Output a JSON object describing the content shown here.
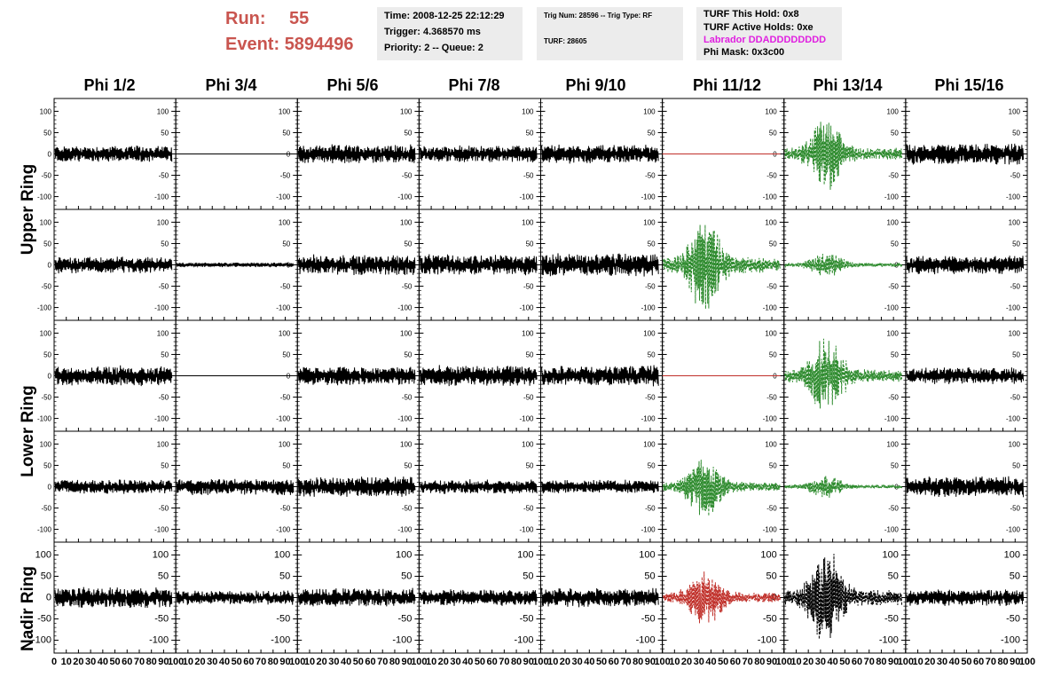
{
  "header": {
    "run_label": "Run:",
    "run_value": "55",
    "event_label": "Event:",
    "event_value": "5894496"
  },
  "info_time": {
    "time": "Time: 2008-12-25 22:12:29",
    "trigger": "Trigger: 4.368570 ms",
    "priority": "Priority: 2 -- Queue: 2"
  },
  "info_trig": {
    "trig": "Trig Num: 28596 -- Trig Type: RF",
    "turf": "TURF: 28605"
  },
  "info_turf": {
    "hold": "TURF This Hold: 0x8",
    "active": "TURF Active Holds: 0xe",
    "labrador": "Labrador DDADDDDDDDD",
    "phimask": "Phi Mask: 0x3c00",
    "labrador_color": "#e020e0"
  },
  "columns": [
    "Phi 1/2",
    "Phi 3/4",
    "Phi 5/6",
    "Phi 7/8",
    "Phi 9/10",
    "Phi 11/12",
    "Phi 13/14",
    "Phi 15/16"
  ],
  "rows": [
    "Upper Ring",
    "Lower Ring",
    "Nadir Ring"
  ],
  "colors": {
    "black": "#000000",
    "green": "#2e8b2e",
    "red": "#c0302a",
    "axis": "#000000"
  },
  "chart_data": {
    "type": "line",
    "xlim": [
      0,
      100
    ],
    "ylim_upper_lower": [
      -130,
      130
    ],
    "ylim_nadir": [
      -130,
      130
    ],
    "y_ticks_upper_lower": [
      "100",
      "50",
      "0",
      "-50",
      "-100"
    ],
    "y_ticks_nadir": [
      "100",
      "50",
      "0",
      "-50",
      "-100"
    ],
    "x_tick_labels": [
      "0",
      "10",
      "20",
      "30",
      "40",
      "50",
      "60",
      "70",
      "80",
      "90",
      "100"
    ],
    "panel_rows": 5,
    "panel_cols": 8,
    "panels": [
      [
        {
          "color": "black",
          "amp": 18,
          "style": "noise"
        },
        {
          "color": "black",
          "amp": 0,
          "style": "flat"
        },
        {
          "color": "black",
          "amp": 20,
          "style": "noise"
        },
        {
          "color": "black",
          "amp": 18,
          "style": "noise"
        },
        {
          "color": "black",
          "amp": 20,
          "style": "noise"
        },
        {
          "color": "red",
          "amp": 0,
          "style": "flat"
        },
        {
          "color": "green",
          "amp": 85,
          "style": "pulse"
        },
        {
          "color": "black",
          "amp": 22,
          "style": "noise"
        }
      ],
      [
        {
          "color": "black",
          "amp": 18,
          "style": "noise"
        },
        {
          "color": "black",
          "amp": 5,
          "style": "noise"
        },
        {
          "color": "black",
          "amp": 22,
          "style": "noise"
        },
        {
          "color": "black",
          "amp": 22,
          "style": "noise"
        },
        {
          "color": "black",
          "amp": 25,
          "style": "noise"
        },
        {
          "color": "green",
          "amp": 110,
          "style": "pulse"
        },
        {
          "color": "green",
          "amp": 28,
          "style": "pulse"
        },
        {
          "color": "black",
          "amp": 20,
          "style": "noise"
        }
      ],
      [
        {
          "color": "black",
          "amp": 22,
          "style": "noise"
        },
        {
          "color": "black",
          "amp": 0,
          "style": "flat"
        },
        {
          "color": "black",
          "amp": 20,
          "style": "noise"
        },
        {
          "color": "black",
          "amp": 22,
          "style": "noise"
        },
        {
          "color": "black",
          "amp": 22,
          "style": "noise"
        },
        {
          "color": "red",
          "amp": 0,
          "style": "flat"
        },
        {
          "color": "green",
          "amp": 90,
          "style": "pulse"
        },
        {
          "color": "black",
          "amp": 18,
          "style": "noise"
        }
      ],
      [
        {
          "color": "black",
          "amp": 15,
          "style": "noise"
        },
        {
          "color": "black",
          "amp": 18,
          "style": "noise"
        },
        {
          "color": "black",
          "amp": 22,
          "style": "noise"
        },
        {
          "color": "black",
          "amp": 15,
          "style": "noise"
        },
        {
          "color": "black",
          "amp": 15,
          "style": "noise"
        },
        {
          "color": "green",
          "amp": 70,
          "style": "pulse"
        },
        {
          "color": "green",
          "amp": 25,
          "style": "pulse"
        },
        {
          "color": "black",
          "amp": 22,
          "style": "noise"
        }
      ],
      [
        {
          "color": "black",
          "amp": 22,
          "style": "noise"
        },
        {
          "color": "black",
          "amp": 15,
          "style": "noise"
        },
        {
          "color": "black",
          "amp": 20,
          "style": "noise"
        },
        {
          "color": "black",
          "amp": 18,
          "style": "noise"
        },
        {
          "color": "black",
          "amp": 20,
          "style": "noise"
        },
        {
          "color": "red",
          "amp": 70,
          "style": "pulse"
        },
        {
          "color": "black",
          "amp": 110,
          "style": "pulse"
        },
        {
          "color": "black",
          "amp": 18,
          "style": "noise"
        }
      ]
    ]
  }
}
